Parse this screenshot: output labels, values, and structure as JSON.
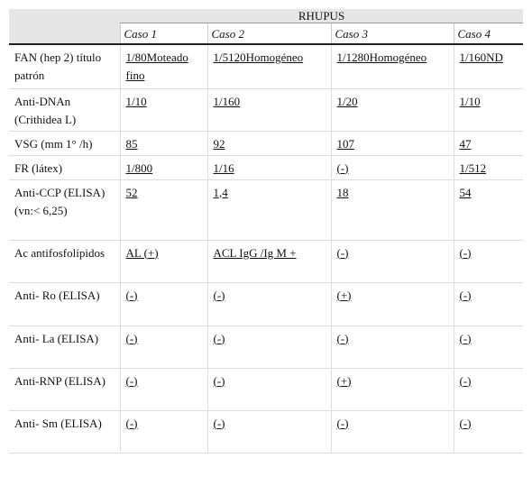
{
  "table": {
    "group_header": "RHUPUS",
    "columns": [
      "Caso 1",
      "Caso 2",
      "Caso 3",
      "Caso 4"
    ],
    "rows": [
      {
        "label": "FAN (hep 2) título patrón",
        "cells": [
          "1/80Moteado fino",
          "1/5120Homogéneo",
          "1/1280Homogéneo",
          "1/160ND"
        ]
      },
      {
        "label": "Anti-DNAn (Crithidea L)",
        "cells": [
          "1/10",
          "1/160",
          "1/20",
          "1/10"
        ]
      },
      {
        "label": "VSG (mm 1° /h)",
        "cells": [
          "85",
          "92",
          "107",
          "47"
        ]
      },
      {
        "label": "FR (látex)",
        "cells": [
          "1/800",
          "1/16",
          "(-)",
          "1/512"
        ]
      },
      {
        "label": "Anti-CCP (ELISA) (vn:< 6,25)",
        "cells": [
          "52",
          "1,4",
          "18",
          "54"
        ]
      },
      {
        "label": "Ac antifosfolípidos",
        "cells": [
          "AL (+)",
          "ACL IgG /Ig M +",
          "(-)",
          "(-)"
        ]
      },
      {
        "label": "Anti- Ro (ELISA)",
        "cells": [
          "(-)",
          "(-)",
          "(+)",
          "(-)"
        ]
      },
      {
        "label": "Anti- La (ELISA)",
        "cells": [
          "(-)",
          "(-)",
          "(-)",
          "(-)"
        ]
      },
      {
        "label": "Anti-RNP (ELISA)",
        "cells": [
          "(-)",
          "(-)",
          "(+)",
          "(-)"
        ]
      },
      {
        "label": "Anti- Sm (ELISA)",
        "cells": [
          "(-)",
          "(-)",
          "(-)",
          "(-)"
        ]
      }
    ]
  }
}
